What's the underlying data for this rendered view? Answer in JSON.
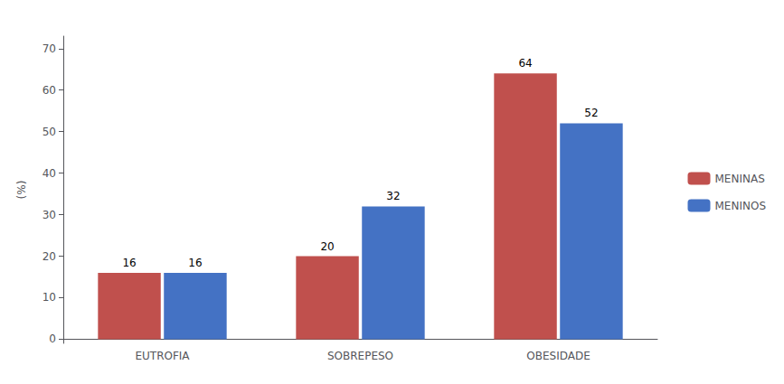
{
  "chart_data": {
    "type": "bar",
    "categories": [
      "EUTROFIA",
      "SOBREPESO",
      "OBESIDADE"
    ],
    "series": [
      {
        "name": "MENINAS",
        "color": "#c0504d",
        "values": [
          16,
          20,
          64
        ]
      },
      {
        "name": "MENINOS",
        "color": "#4472c4",
        "values": [
          16,
          32,
          52
        ]
      }
    ],
    "ylabel": "(%)",
    "ylim": [
      -1,
      73
    ],
    "yticks": [
      0,
      10,
      20,
      30,
      40,
      50,
      60,
      70
    ],
    "data_labels": true,
    "legend": "right",
    "grid": false
  }
}
